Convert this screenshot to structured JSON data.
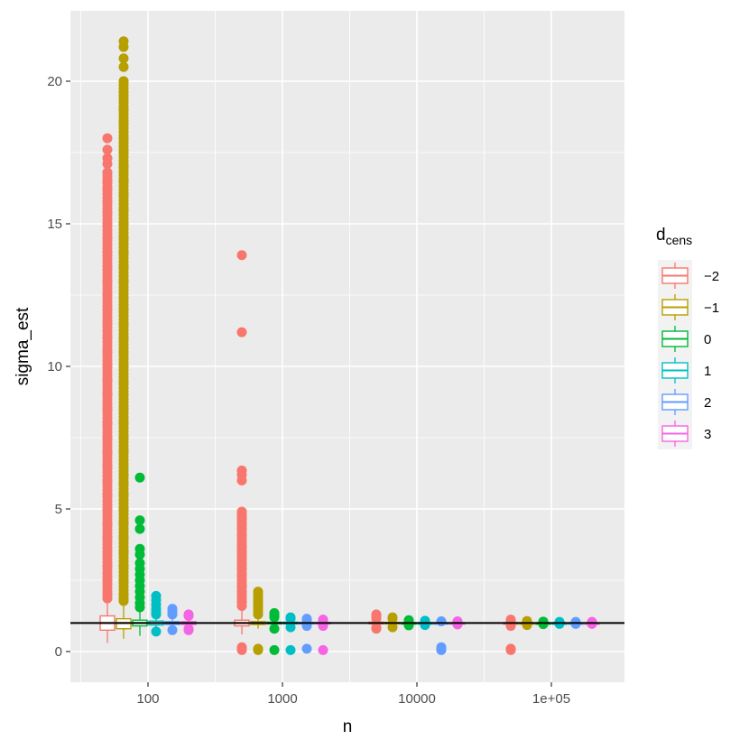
{
  "chart_data": {
    "type": "boxplot",
    "xlabel": "n",
    "ylabel": "sigma_est",
    "x_scale": "log10",
    "x_ticks": [
      100,
      1000,
      10000,
      100000
    ],
    "x_tick_labels": [
      "100",
      "1000",
      "10000",
      "1e+05"
    ],
    "y_ticks": [
      0,
      5,
      10,
      15,
      20
    ],
    "y_tick_labels": [
      "0",
      "5",
      "10",
      "15",
      "20"
    ],
    "ylim": [
      -1.1,
      22.4
    ],
    "reference_line_y": 1,
    "grid": true,
    "legend": {
      "title_main": "d",
      "title_sub": "cens",
      "placement": "right",
      "entries": [
        {
          "label": "−2",
          "color": "#F8766D"
        },
        {
          "label": "−1",
          "color": "#B79F00"
        },
        {
          "label": "0",
          "color": "#00BA38"
        },
        {
          "label": "1",
          "color": "#00BFC4"
        },
        {
          "label": "2",
          "color": "#619CFF"
        },
        {
          "label": "3",
          "color": "#F564E3"
        }
      ]
    },
    "groups": [
      {
        "n": 100,
        "series": [
          {
            "d": -2,
            "q1": 0.75,
            "median": 1.0,
            "q3": 1.25,
            "whisker_low": 0.3,
            "whisker_high": 1.75,
            "outliers_range": [
              1.85,
              16.8
            ],
            "outliers": [
              18.0,
              17.6,
              17.3,
              17.1,
              16.8,
              16.5,
              16.2,
              15.8,
              15.4,
              15.0,
              14.5,
              14.0,
              13.5,
              13.0,
              12.5,
              12.0,
              11.5,
              11.0,
              10.5,
              10.0,
              9.5,
              9.0,
              8.5,
              8.0,
              7.5,
              7.0,
              6.5,
              6.0,
              5.5,
              5.0,
              4.5,
              4.0,
              3.5,
              3.0,
              2.5,
              2.0
            ]
          },
          {
            "d": -1,
            "q1": 0.8,
            "median": 1.0,
            "q3": 1.15,
            "whisker_low": 0.45,
            "whisker_high": 1.6,
            "outliers_range": [
              1.7,
              20.0
            ],
            "outliers": [
              21.4,
              21.2,
              20.8,
              20.5,
              20.0,
              19.5,
              19.0,
              18.5,
              18.0,
              17.5,
              17.0,
              16.5,
              16.0,
              15.5,
              15.0,
              14.5,
              14.0,
              13.5,
              13.0,
              12.4,
              12.0,
              11.5,
              11.0,
              10.5,
              10.0,
              9.4,
              9.0,
              8.5,
              8.0,
              7.5,
              7.0,
              6.2,
              5.9,
              5.5,
              5.0,
              4.5,
              4.0,
              3.5,
              3.0,
              2.5,
              2.0,
              1.8
            ]
          },
          {
            "d": 0,
            "q1": 0.9,
            "median": 1.0,
            "q3": 1.1,
            "whisker_low": 0.55,
            "whisker_high": 1.4,
            "outliers": [
              6.1,
              4.6,
              4.3,
              3.6,
              3.4,
              3.1,
              2.9,
              2.7,
              2.5,
              2.3,
              2.1,
              1.9,
              1.7,
              1.55
            ]
          },
          {
            "d": 1,
            "q1": 0.93,
            "median": 1.0,
            "q3": 1.07,
            "whisker_low": 0.75,
            "whisker_high": 1.25,
            "outliers": [
              1.95,
              1.8,
              1.65,
              1.5,
              1.4,
              1.3,
              0.7
            ]
          },
          {
            "d": 2,
            "q1": 0.95,
            "median": 1.0,
            "q3": 1.05,
            "whisker_low": 0.8,
            "whisker_high": 1.2,
            "outliers": [
              1.5,
              1.4,
              1.3,
              0.75
            ]
          },
          {
            "d": 3,
            "q1": 0.95,
            "median": 1.0,
            "q3": 1.05,
            "whisker_low": 0.85,
            "whisker_high": 1.15,
            "outliers": [
              1.3,
              1.25,
              0.8,
              0.75
            ]
          }
        ]
      },
      {
        "n": 1000,
        "series": [
          {
            "d": -2,
            "q1": 0.9,
            "median": 1.0,
            "q3": 1.1,
            "whisker_low": 0.6,
            "whisker_high": 1.5,
            "outliers_range": [
              1.6,
              4.9
            ],
            "outliers": [
              13.9,
              11.2,
              6.35,
              6.2,
              6.0,
              4.9,
              4.7,
              4.5,
              4.3,
              4.1,
              3.9,
              3.7,
              3.5,
              3.3,
              3.1,
              2.9,
              2.7,
              2.5,
              2.3,
              2.1,
              1.9,
              1.75,
              1.6,
              0.15,
              0.05
            ]
          },
          {
            "d": -1,
            "q1": 0.95,
            "median": 1.0,
            "q3": 1.05,
            "whisker_low": 0.8,
            "whisker_high": 1.2,
            "outliers": [
              2.1,
              2.0,
              1.9,
              1.8,
              1.7,
              1.6,
              1.5,
              1.4,
              1.3,
              0.1,
              0.05
            ]
          },
          {
            "d": 0,
            "q1": 0.97,
            "median": 1.0,
            "q3": 1.03,
            "whisker_low": 0.9,
            "whisker_high": 1.1,
            "outliers": [
              1.35,
              1.3,
              1.25,
              1.2,
              0.8,
              0.05
            ]
          },
          {
            "d": 1,
            "q1": 0.97,
            "median": 1.0,
            "q3": 1.03,
            "whisker_low": 0.92,
            "whisker_high": 1.08,
            "outliers": [
              1.2,
              1.15,
              0.85,
              0.05
            ]
          },
          {
            "d": 2,
            "q1": 0.98,
            "median": 1.0,
            "q3": 1.02,
            "whisker_low": 0.93,
            "whisker_high": 1.07,
            "outliers": [
              1.15,
              1.1,
              0.9,
              0.1
            ]
          },
          {
            "d": 3,
            "q1": 0.98,
            "median": 1.0,
            "q3": 1.02,
            "whisker_low": 0.94,
            "whisker_high": 1.06,
            "outliers": [
              1.12,
              1.08,
              0.9,
              0.05
            ]
          }
        ]
      },
      {
        "n": 10000,
        "series": [
          {
            "d": -2,
            "q1": 0.97,
            "median": 1.0,
            "q3": 1.03,
            "whisker_low": 0.9,
            "whisker_high": 1.1,
            "outliers": [
              1.3,
              1.25,
              1.2,
              1.15,
              0.85,
              0.8
            ]
          },
          {
            "d": -1,
            "q1": 0.98,
            "median": 1.0,
            "q3": 1.02,
            "whisker_low": 0.93,
            "whisker_high": 1.07,
            "outliers": [
              1.2,
              1.15,
              0.85
            ]
          },
          {
            "d": 0,
            "q1": 0.99,
            "median": 1.0,
            "q3": 1.01,
            "whisker_low": 0.96,
            "whisker_high": 1.04,
            "outliers": [
              1.1,
              1.07,
              0.92
            ]
          },
          {
            "d": 1,
            "q1": 0.99,
            "median": 1.0,
            "q3": 1.01,
            "whisker_low": 0.97,
            "whisker_high": 1.03,
            "outliers": [
              1.08,
              0.93
            ]
          },
          {
            "d": 2,
            "q1": 0.99,
            "median": 1.0,
            "q3": 1.01,
            "whisker_low": 0.97,
            "whisker_high": 1.03,
            "outliers": [
              1.06,
              0.15,
              0.1,
              0.05
            ]
          },
          {
            "d": 3,
            "q1": 0.99,
            "median": 1.0,
            "q3": 1.01,
            "whisker_low": 0.97,
            "whisker_high": 1.03,
            "outliers": [
              1.06,
              0.95
            ]
          }
        ]
      },
      {
        "n": 100000,
        "series": [
          {
            "d": -2,
            "q1": 0.99,
            "median": 1.0,
            "q3": 1.01,
            "whisker_low": 0.96,
            "whisker_high": 1.04,
            "outliers": [
              1.12,
              1.08,
              0.9,
              0.1,
              0.05
            ]
          },
          {
            "d": -1,
            "q1": 0.99,
            "median": 1.0,
            "q3": 1.01,
            "whisker_low": 0.97,
            "whisker_high": 1.03,
            "outliers": [
              1.07,
              0.93
            ]
          },
          {
            "d": 0,
            "q1": 0.995,
            "median": 1.0,
            "q3": 1.005,
            "whisker_low": 0.98,
            "whisker_high": 1.02,
            "outliers": [
              1.05,
              0.96
            ]
          },
          {
            "d": 1,
            "q1": 0.995,
            "median": 1.0,
            "q3": 1.005,
            "whisker_low": 0.98,
            "whisker_high": 1.02,
            "outliers": [
              1.04,
              0.97
            ]
          },
          {
            "d": 2,
            "q1": 0.995,
            "median": 1.0,
            "q3": 1.005,
            "whisker_low": 0.98,
            "whisker_high": 1.02,
            "outliers": [
              1.04,
              0.97
            ]
          },
          {
            "d": 3,
            "q1": 0.995,
            "median": 1.0,
            "q3": 1.005,
            "whisker_low": 0.98,
            "whisker_high": 1.02,
            "outliers": [
              1.04,
              0.97
            ]
          }
        ]
      }
    ]
  }
}
